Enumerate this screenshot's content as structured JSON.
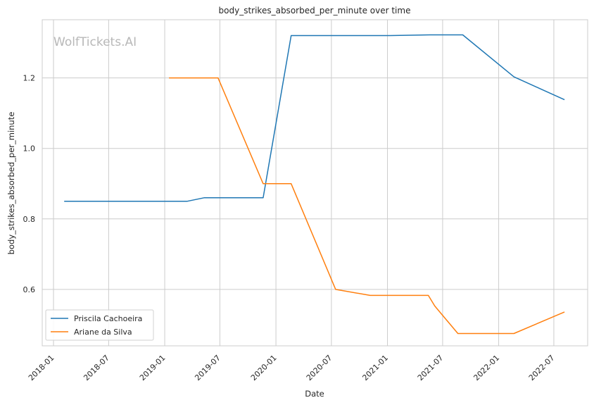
{
  "chart_data": {
    "type": "line",
    "title": "body_strikes_absorbed_per_minute over time",
    "xlabel": "Date",
    "ylabel": "body_strikes_absorbed_per_minute",
    "watermark": "WolfTickets.AI",
    "xlim": [
      "2017-11-25",
      "2022-10-20"
    ],
    "ylim": [
      0.44,
      1.365
    ],
    "x_ticks": [
      {
        "date": "2018-01-01",
        "label": "2018-01"
      },
      {
        "date": "2018-07-01",
        "label": "2018-07"
      },
      {
        "date": "2019-01-01",
        "label": "2019-01"
      },
      {
        "date": "2019-07-01",
        "label": "2019-07"
      },
      {
        "date": "2020-01-01",
        "label": "2020-01"
      },
      {
        "date": "2020-07-01",
        "label": "2020-07"
      },
      {
        "date": "2021-01-01",
        "label": "2021-01"
      },
      {
        "date": "2021-07-01",
        "label": "2021-07"
      },
      {
        "date": "2022-01-01",
        "label": "2022-01"
      },
      {
        "date": "2022-07-01",
        "label": "2022-07"
      }
    ],
    "y_ticks": [
      {
        "value": 0.6,
        "label": "0.6"
      },
      {
        "value": 0.8,
        "label": "0.8"
      },
      {
        "value": 1.0,
        "label": "1.0"
      },
      {
        "value": 1.2,
        "label": "1.2"
      }
    ],
    "grid": true,
    "legend_position": "lower-left",
    "series": [
      {
        "name": "Priscila Cachoeira",
        "color": "#1f77b4",
        "points": [
          {
            "x": "2018-02-05",
            "y": 0.85
          },
          {
            "x": "2019-03-15",
            "y": 0.85
          },
          {
            "x": "2019-05-10",
            "y": 0.86
          },
          {
            "x": "2019-11-20",
            "y": 0.86
          },
          {
            "x": "2020-02-20",
            "y": 1.32
          },
          {
            "x": "2021-01-10",
            "y": 1.32
          },
          {
            "x": "2021-05-20",
            "y": 1.322
          },
          {
            "x": "2021-09-05",
            "y": 1.322
          },
          {
            "x": "2022-02-20",
            "y": 1.203
          },
          {
            "x": "2022-08-05",
            "y": 1.138
          }
        ]
      },
      {
        "name": "Ariane da Silva",
        "color": "#ff7f0e",
        "points": [
          {
            "x": "2019-01-15",
            "y": 1.2
          },
          {
            "x": "2019-06-25",
            "y": 1.2
          },
          {
            "x": "2019-11-20",
            "y": 0.9
          },
          {
            "x": "2020-02-20",
            "y": 0.9
          },
          {
            "x": "2020-07-15",
            "y": 0.6
          },
          {
            "x": "2020-11-05",
            "y": 0.583
          },
          {
            "x": "2021-05-15",
            "y": 0.583
          },
          {
            "x": "2021-06-05",
            "y": 0.553
          },
          {
            "x": "2021-08-20",
            "y": 0.475
          },
          {
            "x": "2022-02-20",
            "y": 0.475
          },
          {
            "x": "2022-08-05",
            "y": 0.536
          }
        ]
      }
    ]
  }
}
